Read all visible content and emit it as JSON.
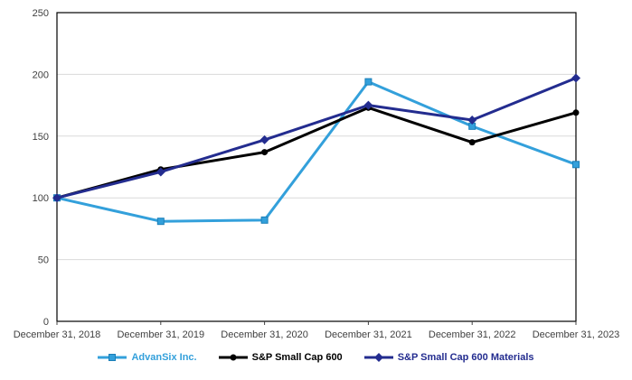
{
  "chart_data": {
    "type": "line",
    "title": "",
    "xlabel": "",
    "ylabel": "",
    "categories": [
      "December 31, 2018",
      "December 31, 2019",
      "December 31, 2020",
      "December 31, 2021",
      "December 31, 2022",
      "December 31, 2023"
    ],
    "series": [
      {
        "name": "AdvanSix Inc.",
        "slug": "advansix-inc",
        "values": [
          100,
          81,
          82,
          194,
          158,
          127
        ],
        "color": "#33A0DB",
        "marker": "square",
        "marker_stroke": "#1B7FB8"
      },
      {
        "name": "S&P Small Cap 600",
        "slug": "sp-small-cap-600",
        "values": [
          100,
          123,
          137,
          173,
          145,
          169
        ],
        "color": "#000000",
        "marker": "circle",
        "marker_stroke": "#000000"
      },
      {
        "name": "S&P Small Cap 600 Materials",
        "slug": "sp-small-cap-600-materials",
        "values": [
          100,
          121,
          147,
          175,
          163,
          197
        ],
        "color": "#232C8F",
        "marker": "diamond",
        "marker_stroke": "#232C8F"
      }
    ],
    "ylim": [
      0,
      250
    ],
    "yticks": [
      0,
      50,
      100,
      150,
      200,
      250
    ],
    "grid": true,
    "legend_position": "bottom",
    "colors": {
      "background": "#FFFFFF",
      "gridline": "#D9D9D9",
      "axis_border": "#000000",
      "axis_text": "#404040"
    }
  }
}
